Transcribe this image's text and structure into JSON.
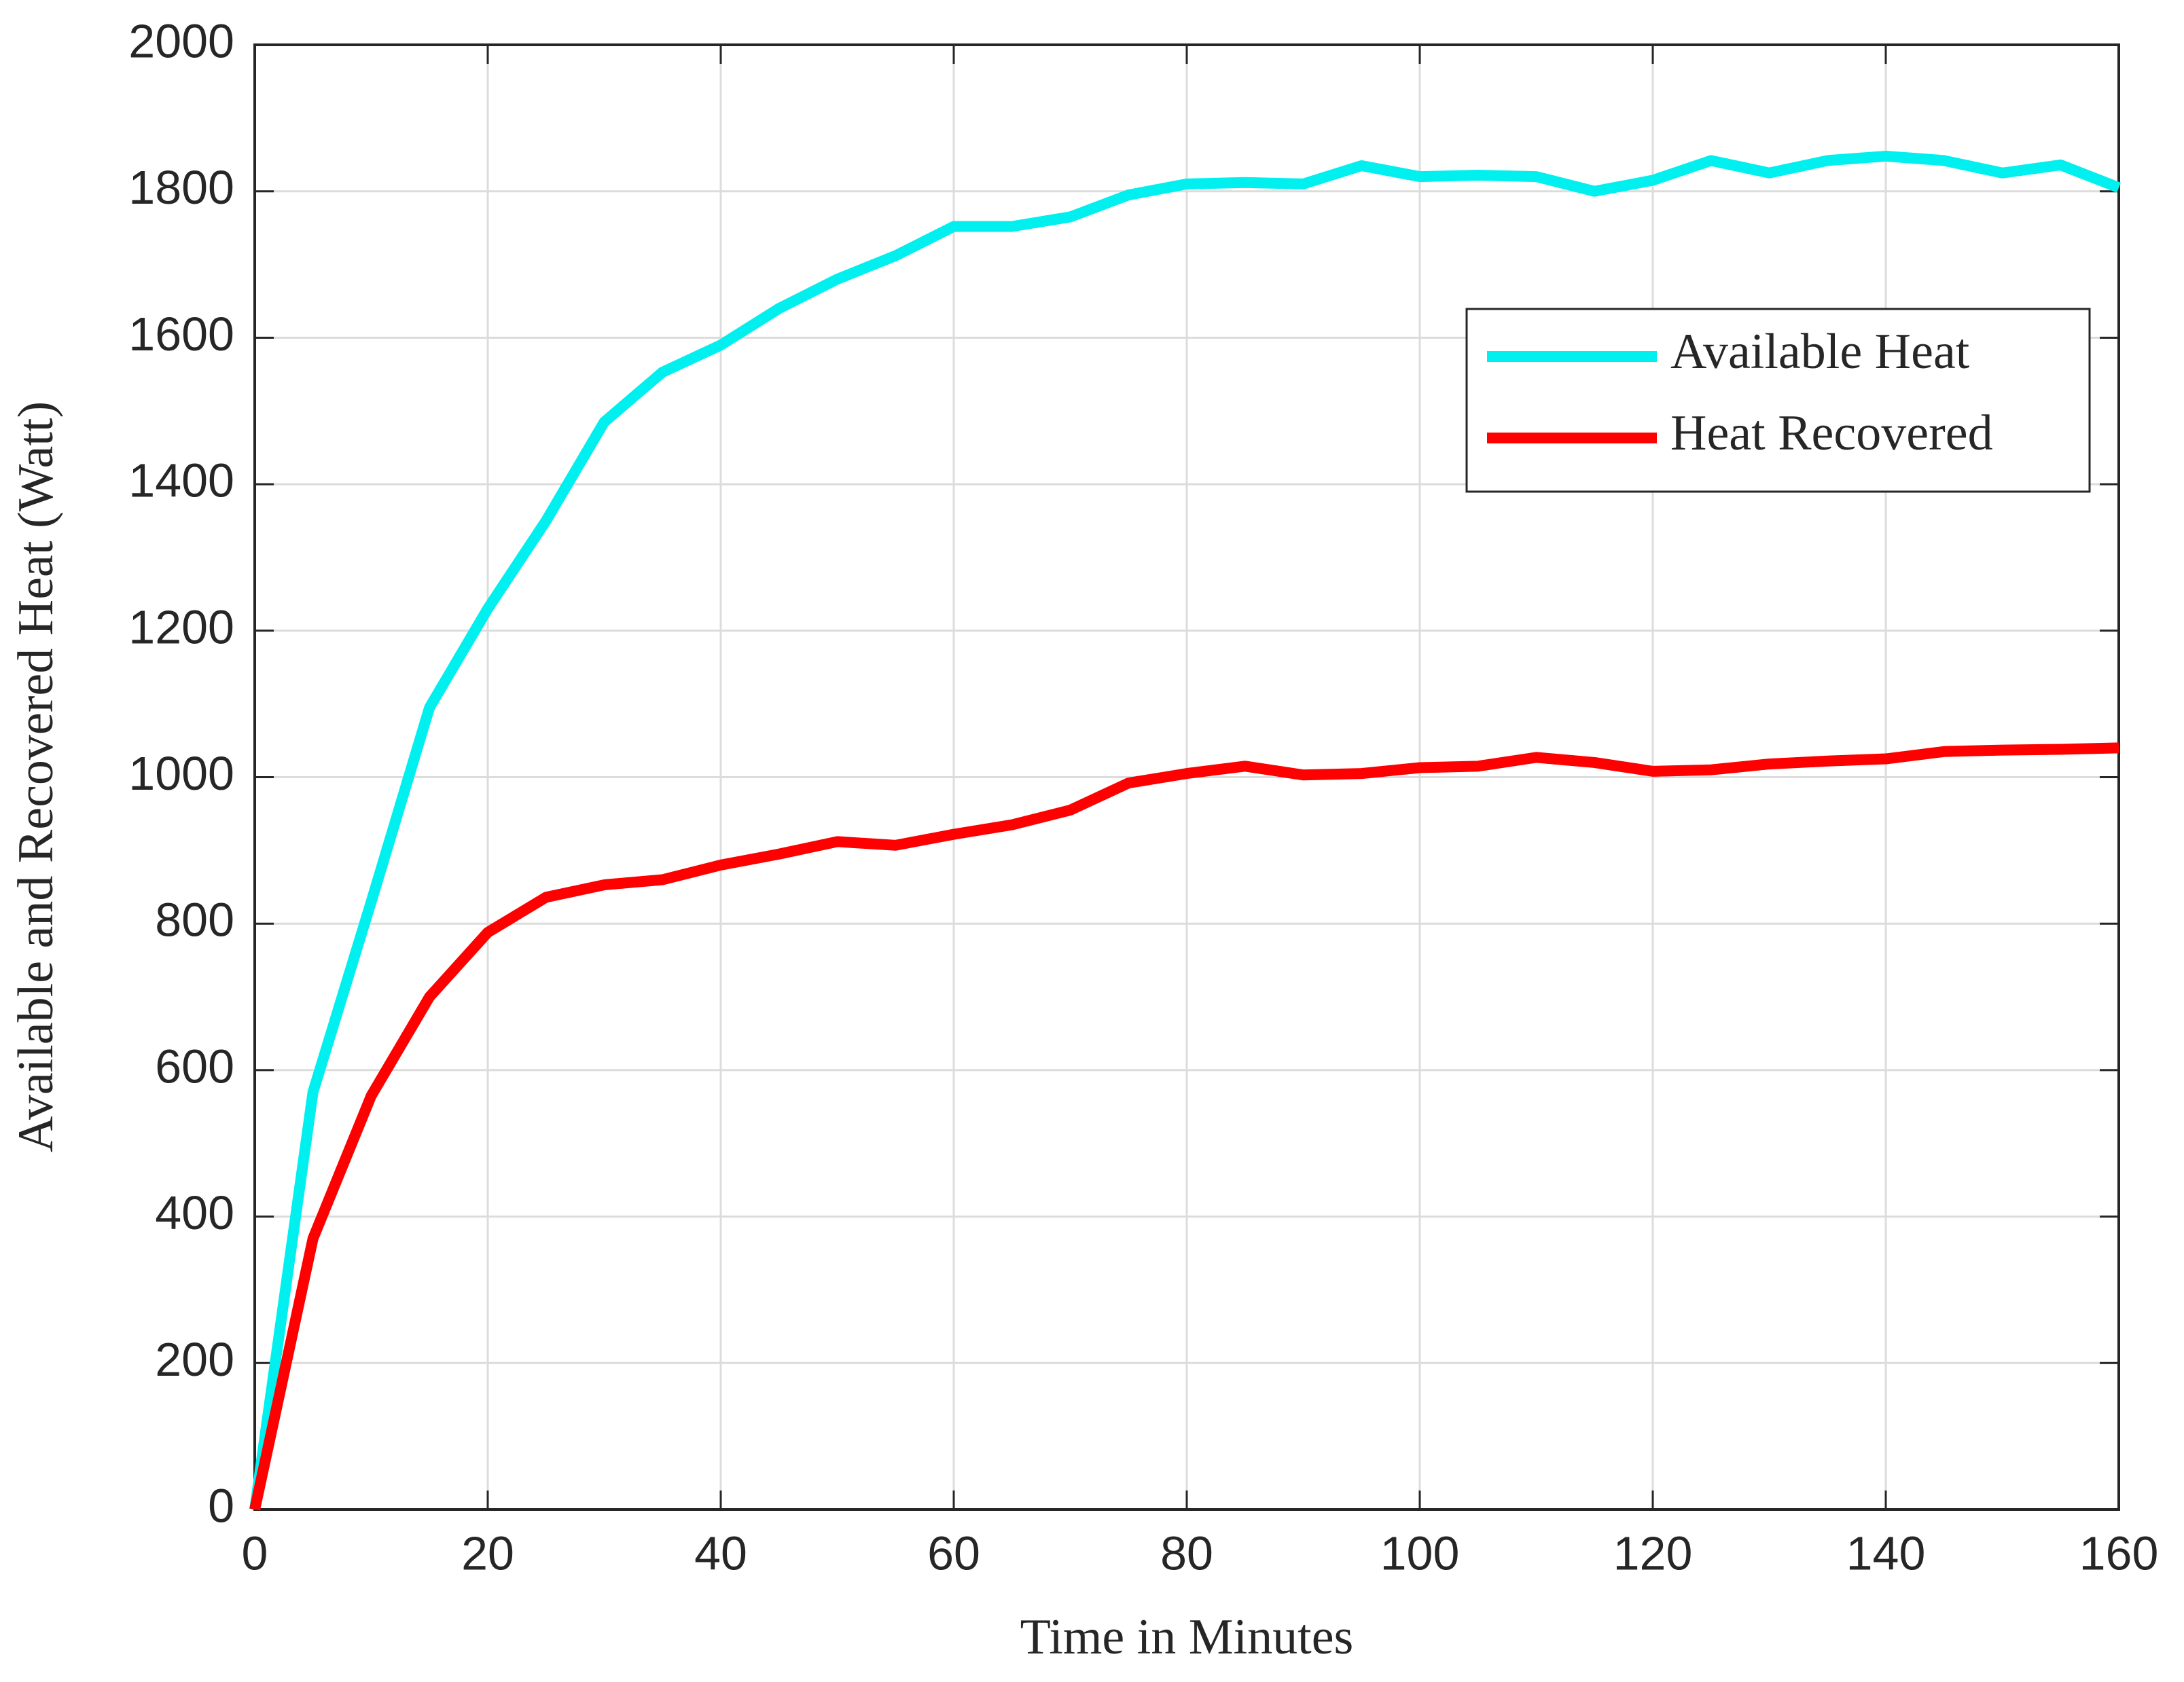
{
  "chart_data": {
    "type": "line",
    "x_label": "Time in Minutes",
    "y_label": "Available and Recovered Heat (Watt)",
    "x": [
      0,
      5,
      10,
      15,
      20,
      25,
      30,
      35,
      40,
      45,
      50,
      55,
      60,
      65,
      70,
      75,
      80,
      85,
      90,
      95,
      100,
      105,
      110,
      115,
      120,
      125,
      130,
      135,
      140,
      145,
      150,
      155,
      160
    ],
    "series": [
      {
        "name": "Available Heat",
        "color": "#00f0f0",
        "values": [
          0,
          570,
          830,
          1095,
          1230,
          1350,
          1485,
          1553,
          1590,
          1640,
          1680,
          1712,
          1752,
          1752,
          1765,
          1795,
          1810,
          1812,
          1810,
          1835,
          1820,
          1822,
          1820,
          1800,
          1815,
          1842,
          1825,
          1842,
          1848,
          1842,
          1825,
          1836,
          1805
        ]
      },
      {
        "name": "Heat Recovered",
        "color": "#ff0000",
        "values": [
          0,
          370,
          565,
          700,
          788,
          836,
          853,
          860,
          880,
          895,
          912,
          907,
          922,
          935,
          955,
          992,
          1005,
          1015,
          1003,
          1005,
          1013,
          1015,
          1027,
          1020,
          1008,
          1010,
          1018,
          1022,
          1025,
          1035,
          1037,
          1038,
          1040
        ]
      }
    ],
    "xlim": [
      0,
      160
    ],
    "xticks": [
      0,
      20,
      40,
      60,
      80,
      100,
      120,
      140,
      160
    ],
    "ylim": [
      0,
      2000
    ],
    "yticks": [
      0,
      200,
      400,
      600,
      800,
      1000,
      1200,
      1400,
      1600,
      1800,
      2000
    ],
    "grid": true,
    "legend_position": "upper right"
  }
}
